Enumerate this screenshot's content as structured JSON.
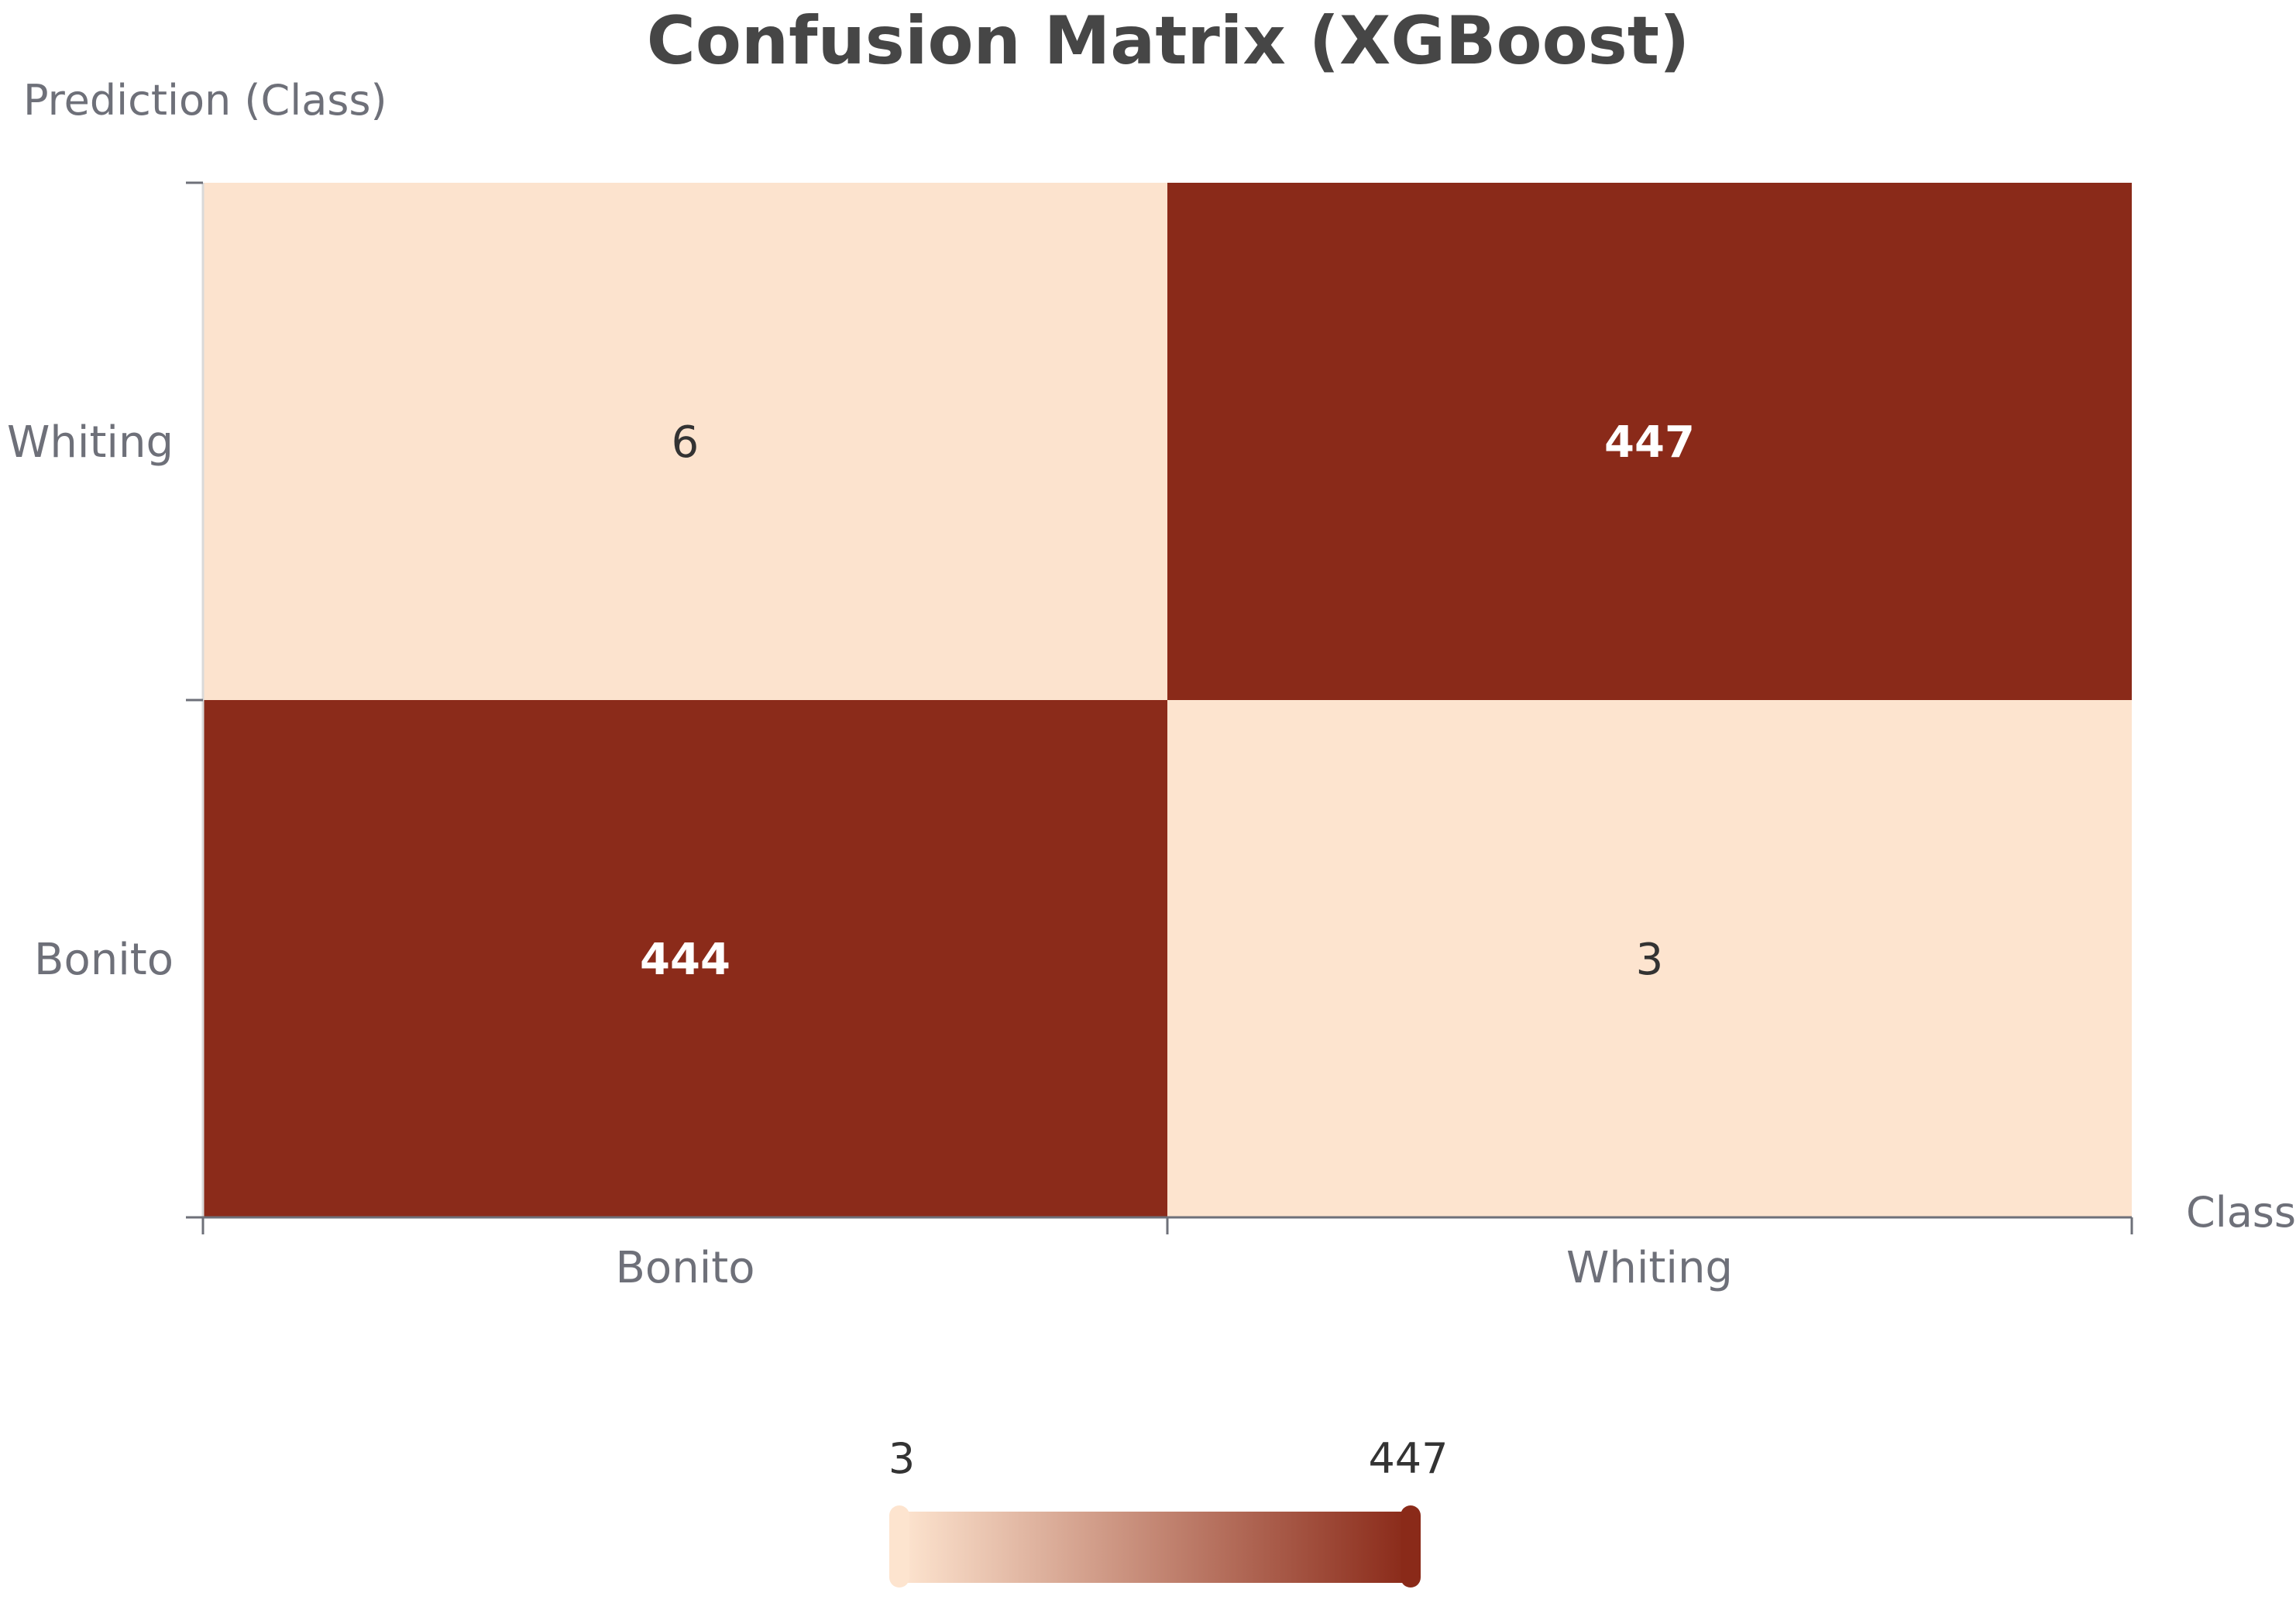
{
  "chart_data": {
    "type": "heatmap",
    "title": "Confusion Matrix (XGBoost)",
    "xlabel": "Class",
    "ylabel": "Prediction (Class)",
    "x_categories": [
      "Bonito",
      "Whiting"
    ],
    "y_categories": [
      "Bonito",
      "Whiting"
    ],
    "cells": [
      {
        "x": "Bonito",
        "y": "Whiting",
        "value": 6
      },
      {
        "x": "Whiting",
        "y": "Whiting",
        "value": 447
      },
      {
        "x": "Bonito",
        "y": "Bonito",
        "value": 444
      },
      {
        "x": "Whiting",
        "y": "Bonito",
        "value": 3
      }
    ],
    "color_range": [
      3,
      447
    ],
    "colors": {
      "low": "#fde4cf",
      "high": "#8a2a19"
    },
    "legend": {
      "min_label": "3",
      "max_label": "447",
      "placement": "bottom-center"
    }
  }
}
